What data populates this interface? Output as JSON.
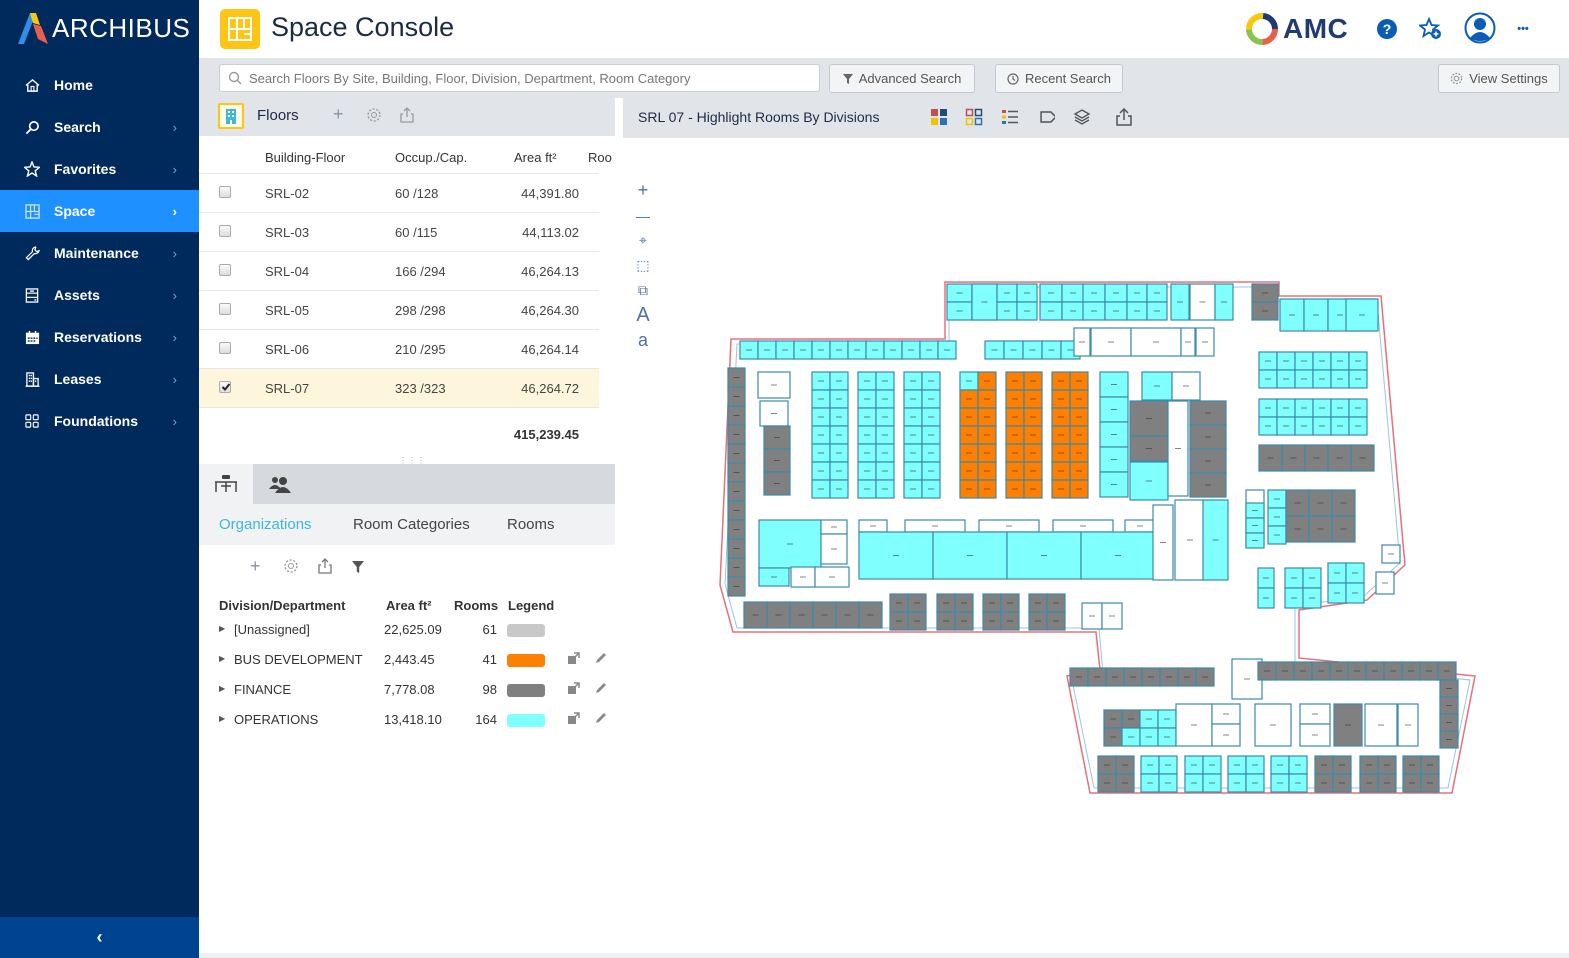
{
  "brand": {
    "name": "ARCHIBUS",
    "client_logo": "AMC"
  },
  "app": {
    "title": "Space Console"
  },
  "colors": {
    "sidebar_bg": "#002a5c",
    "sidebar_active": "#1e90ff",
    "accent_tab": "#3bb8dc",
    "app_icon": "#fdc514",
    "unassigned": "#c8c8c8",
    "bus_development": "#ff8000",
    "finance": "#808080",
    "operations": "#80ffff",
    "outline_red": "#e8707a",
    "wall_blue": "#3c8aa8"
  },
  "sidebar": {
    "items": [
      {
        "label": "Home",
        "icon": "home-icon",
        "has_chevron": false
      },
      {
        "label": "Search",
        "icon": "search-icon",
        "has_chevron": true
      },
      {
        "label": "Favorites",
        "icon": "star-icon",
        "has_chevron": true
      },
      {
        "label": "Space",
        "icon": "floorplan-icon",
        "has_chevron": true,
        "active": true
      },
      {
        "label": "Maintenance",
        "icon": "wrench-icon",
        "has_chevron": true
      },
      {
        "label": "Assets",
        "icon": "cabinet-icon",
        "has_chevron": true
      },
      {
        "label": "Reservations",
        "icon": "calendar-icon",
        "has_chevron": true
      },
      {
        "label": "Leases",
        "icon": "buildings-icon",
        "has_chevron": true
      },
      {
        "label": "Foundations",
        "icon": "grid-icon",
        "has_chevron": true
      }
    ],
    "collapse_glyph": "‹",
    "chevron_glyph": "›"
  },
  "header_icons": {
    "help": "?",
    "more": "•••"
  },
  "search": {
    "placeholder": "Search Floors By Site, Building, Floor, Division, Department, Room Category",
    "advanced_label": "Advanced Search",
    "recent_label": "Recent Search",
    "view_settings_label": "View Settings"
  },
  "floors": {
    "title": "Floors",
    "columns": [
      "Building-Floor",
      "Occup./Cap.",
      "Area ft²",
      "Roo"
    ],
    "rows": [
      {
        "floor": "SRL-02",
        "occ": "60 /128",
        "area": "44,391.80",
        "checked": false
      },
      {
        "floor": "SRL-03",
        "occ": "60 /115",
        "area": "44,113.02",
        "checked": false
      },
      {
        "floor": "SRL-04",
        "occ": "166 /294",
        "area": "46,264.13",
        "checked": false
      },
      {
        "floor": "SRL-05",
        "occ": "298 /298",
        "area": "46,264.30",
        "checked": false
      },
      {
        "floor": "SRL-06",
        "occ": "210 /295",
        "area": "46,264.14",
        "checked": false
      },
      {
        "floor": "SRL-07",
        "occ": "323 /323",
        "area": "46,264.72",
        "checked": true
      }
    ],
    "total_area": "415,239.45"
  },
  "lower_panel": {
    "subtabs": [
      "Organizations",
      "Room Categories",
      "Rooms"
    ],
    "active_subtab": "Organizations",
    "columns": [
      "Division/Department",
      "Area ft²",
      "Rooms",
      "Legend"
    ],
    "rows": [
      {
        "name": "[Unassigned]",
        "area": "22,625.09",
        "rooms": "61",
        "color": "#c8c8c8",
        "actions": false
      },
      {
        "name": "BUS DEVELOPMENT",
        "area": "2,443.45",
        "rooms": "41",
        "color": "#ff8000",
        "actions": true
      },
      {
        "name": "FINANCE",
        "area": "7,778.08",
        "rooms": "98",
        "color": "#808080",
        "actions": true
      },
      {
        "name": "OPERATIONS",
        "area": "13,418.10",
        "rooms": "164",
        "color": "#80ffff",
        "actions": true
      }
    ]
  },
  "map": {
    "title": "SRL 07 - Highlight Rooms By Divisions",
    "zoom_tools": [
      "+",
      "—",
      "⌖",
      "⬚",
      "⧉",
      "A",
      "a"
    ]
  }
}
